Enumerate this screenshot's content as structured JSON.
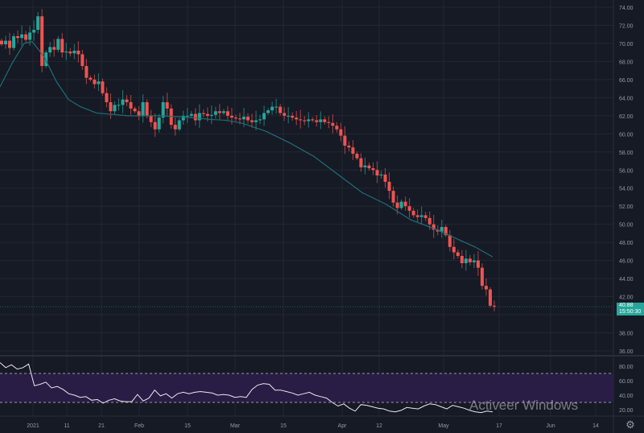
{
  "chart_data": {
    "type": "candlestick",
    "price_axis": {
      "ticks": [
        "74.00",
        "72.00",
        "70.00",
        "68.00",
        "66.00",
        "64.00",
        "62.00",
        "60.00",
        "58.00",
        "56.00",
        "54.00",
        "52.00",
        "50.00",
        "48.00",
        "46.00",
        "44.00",
        "42.00",
        "38.00",
        "36.00"
      ],
      "range": [
        36,
        74
      ]
    },
    "time_axis": {
      "ticks": [
        "2021",
        "11",
        "21",
        "Feb",
        "15",
        "Mar",
        "15",
        "Apr",
        "12",
        "May",
        "17",
        "Jun",
        "14"
      ]
    },
    "closes": [
      69.9,
      70.3,
      69.5,
      70.8,
      70.6,
      71.0,
      70.4,
      71.2,
      71.5,
      73.0,
      67.5,
      69.0,
      69.6,
      69.3,
      70.5,
      69.0,
      69.1,
      68.9,
      69.2,
      68.8,
      67.5,
      66.2,
      66.0,
      65.5,
      65.8,
      64.5,
      63.5,
      62.5,
      63.2,
      63.2,
      63.8,
      63.5,
      62.8,
      62.5,
      62.0,
      63.5,
      62.0,
      61.3,
      60.5,
      61.8,
      63.5,
      62.8,
      61.0,
      60.5,
      61.5,
      62.0,
      62.0,
      62.2,
      61.5,
      62.3,
      62.2,
      62.0,
      62.1,
      62.5,
      62.3,
      62.5,
      62.0,
      61.8,
      61.7,
      61.6,
      61.9,
      61.5,
      61.3,
      61.5,
      61.6,
      62.3,
      62.6,
      63.0,
      63.0,
      62.3,
      62.0,
      62.0,
      61.8,
      61.6,
      61.5,
      61.4,
      61.6,
      61.5,
      61.3,
      61.6,
      61.3,
      61.2,
      60.9,
      60.5,
      59.8,
      58.7,
      58.5,
      57.8,
      57.3,
      56.3,
      56.5,
      56.2,
      56.0,
      55.4,
      55.5,
      54.7,
      53.7,
      52.4,
      51.8,
      52.5,
      52.0,
      51.5,
      51.0,
      50.8,
      51.0,
      50.7,
      50.0,
      49.4,
      49.2,
      49.7,
      48.8,
      47.5,
      46.9,
      46.5,
      45.7,
      46.2,
      45.8,
      46.0,
      45.2,
      43.2,
      42.8,
      41.0,
      40.88
    ],
    "ma": [
      [
        0,
        65.2
      ],
      [
        15,
        67.8
      ],
      [
        30,
        70.0
      ],
      [
        40,
        70.2
      ],
      [
        55,
        68.5
      ],
      [
        70,
        65.8
      ],
      [
        85,
        63.8
      ],
      [
        100,
        63.0
      ],
      [
        120,
        62.3
      ],
      [
        160,
        62.0
      ],
      [
        200,
        62.0
      ],
      [
        220,
        61.9
      ],
      [
        240,
        61.8
      ],
      [
        260,
        61.6
      ],
      [
        280,
        61.5
      ],
      [
        300,
        61.2
      ],
      [
        330,
        60.3
      ],
      [
        360,
        59.0
      ],
      [
        390,
        57.5
      ],
      [
        420,
        55.5
      ],
      [
        450,
        53.5
      ],
      [
        480,
        52.2
      ],
      [
        510,
        50.5
      ],
      [
        540,
        49.5
      ],
      [
        560,
        48.7
      ],
      [
        590,
        47.5
      ],
      [
        612,
        46.4
      ]
    ],
    "last_price": "40.88",
    "countdown": "15:50:30",
    "rsi": {
      "ticks": [
        "80.00",
        "60.00",
        "40.00",
        "20.00"
      ],
      "upper": 70,
      "lower": 30,
      "values": [
        85,
        78,
        82,
        76,
        78,
        83,
        53,
        55,
        58,
        50,
        52,
        48,
        42,
        40,
        37,
        38,
        33,
        34,
        29,
        33,
        35,
        32,
        31,
        31,
        41,
        32,
        36,
        47,
        39,
        42,
        36,
        42,
        44,
        42,
        44,
        45,
        44,
        43,
        40,
        41,
        40,
        37,
        38,
        37,
        48,
        54,
        56,
        55,
        47,
        47,
        45,
        43,
        40,
        42,
        44,
        40,
        38,
        36,
        30,
        25,
        28,
        22,
        18,
        27,
        26,
        24,
        22,
        21,
        18,
        17,
        19,
        23,
        22,
        21,
        25,
        28,
        27,
        24,
        21,
        26,
        24,
        22,
        19,
        17,
        16,
        18,
        17
      ]
    },
    "colors": {
      "up": "#26a69a",
      "down": "#ef5350",
      "ma": "#1e6e75",
      "rsi": "#e8e8f0",
      "band": "#2a1d45",
      "bg": "#161a25",
      "grid": "#232734"
    }
  },
  "watermark": "Activeer Windows"
}
